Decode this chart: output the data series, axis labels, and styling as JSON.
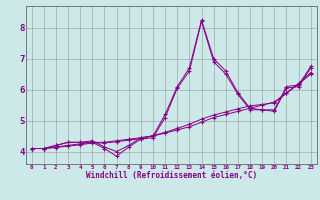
{
  "xlabel": "Windchill (Refroidissement éolien,°C)",
  "bg_color": "#cce8e8",
  "grid_color": "#999999",
  "line_color": "#880088",
  "xlim": [
    -0.5,
    23.5
  ],
  "ylim": [
    3.6,
    8.7
  ],
  "xticks": [
    0,
    1,
    2,
    3,
    4,
    5,
    6,
    7,
    8,
    9,
    10,
    11,
    12,
    13,
    14,
    15,
    16,
    17,
    18,
    19,
    20,
    21,
    22,
    23
  ],
  "yticks": [
    4,
    5,
    6,
    7,
    8
  ],
  "line1_y": [
    4.1,
    4.1,
    4.2,
    4.3,
    4.3,
    4.3,
    4.1,
    3.85,
    4.15,
    4.4,
    4.45,
    5.1,
    6.05,
    6.6,
    8.2,
    6.9,
    6.5,
    5.85,
    5.35,
    5.35,
    5.3,
    6.05,
    6.1,
    6.7
  ],
  "line2_y": [
    4.1,
    4.1,
    4.15,
    4.2,
    4.25,
    4.3,
    4.3,
    4.35,
    4.4,
    4.45,
    4.5,
    4.6,
    4.7,
    4.8,
    4.95,
    5.1,
    5.2,
    5.3,
    5.4,
    5.5,
    5.6,
    5.9,
    6.2,
    6.55
  ],
  "line3_y": [
    4.1,
    4.1,
    4.13,
    4.18,
    4.22,
    4.28,
    4.28,
    4.32,
    4.37,
    4.42,
    4.52,
    4.62,
    4.75,
    4.88,
    5.05,
    5.18,
    5.28,
    5.38,
    5.48,
    5.52,
    5.58,
    5.88,
    6.18,
    6.5
  ],
  "line4_y": [
    4.1,
    4.1,
    4.2,
    4.3,
    4.3,
    4.35,
    4.15,
    4.0,
    4.2,
    4.45,
    4.5,
    5.2,
    6.1,
    6.7,
    8.25,
    7.0,
    6.6,
    5.9,
    5.4,
    5.35,
    5.35,
    6.1,
    6.15,
    6.75
  ]
}
